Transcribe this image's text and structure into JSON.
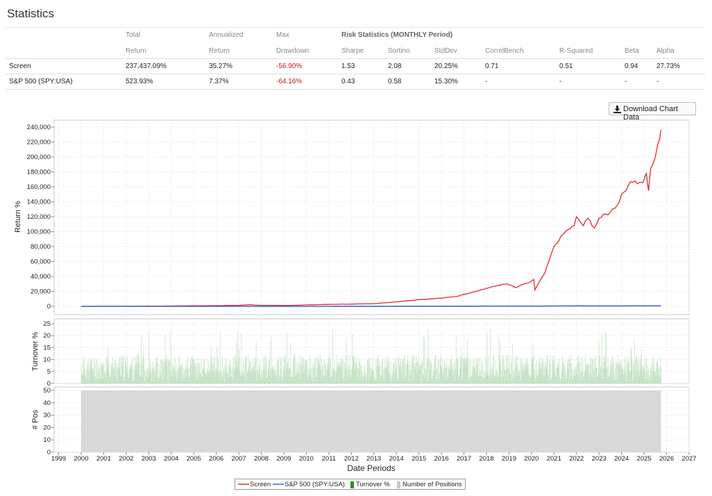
{
  "page": {
    "title": "Statistics"
  },
  "stats": {
    "risk_header": "Risk Statistics (MONTHLY Period)",
    "headers": [
      {
        "key": "total",
        "line1": "Total",
        "line2": "Return"
      },
      {
        "key": "ann",
        "line1": "Annualized",
        "line2": "Return"
      },
      {
        "key": "maxdd",
        "line1": "Max",
        "line2": "Drawdown"
      },
      {
        "key": "sharpe",
        "line1": "",
        "line2": "Sharpe"
      },
      {
        "key": "sortino",
        "line1": "",
        "line2": "Sortino"
      },
      {
        "key": "stddev",
        "line1": "",
        "line2": "StdDev"
      },
      {
        "key": "correl",
        "line1": "",
        "line2": "CorrelBench"
      },
      {
        "key": "rsq",
        "line1": "",
        "line2": "R-Squared"
      },
      {
        "key": "beta",
        "line1": "",
        "line2": "Beta"
      },
      {
        "key": "alpha",
        "line1": "",
        "line2": "Alpha"
      }
    ],
    "rows": [
      {
        "name": "Screen",
        "values": [
          "237,437.09%",
          "35.27%",
          "-56.90%",
          "1.53",
          "2.08",
          "20.25%",
          "0.71",
          "0.51",
          "0.94",
          "27.73%"
        ]
      },
      {
        "name": "S&P 500 (SPY:USA)",
        "values": [
          "523.93%",
          "7.37%",
          "-64.16%",
          "0.43",
          "0.58",
          "15.30%",
          "-",
          "-",
          "-",
          "-"
        ]
      }
    ]
  },
  "download_button": {
    "label": "Download Chart Data",
    "icon": "download-icon"
  },
  "chart_data": {
    "type": "line",
    "xlabel": "Date Periods",
    "x_range": [
      1998.8,
      2027.0
    ],
    "x_ticks": [
      "1999",
      "2000",
      "2001",
      "2002",
      "2003",
      "2004",
      "2005",
      "2006",
      "2007",
      "2008",
      "2009",
      "2010",
      "2011",
      "2012",
      "2013",
      "2014",
      "2015",
      "2016",
      "2017",
      "2018",
      "2019",
      "2020",
      "2021",
      "2022",
      "2023",
      "2024",
      "2025",
      "2026",
      "2027"
    ],
    "panels": [
      {
        "ylabel": "Return %",
        "ylim": [
          0,
          240000
        ],
        "yticks": [
          0,
          20000,
          40000,
          60000,
          80000,
          100000,
          120000,
          140000,
          160000,
          180000,
          200000,
          220000,
          240000
        ],
        "ytick_labels": [
          "0",
          "20,000",
          "40,000",
          "60,000",
          "80,000",
          "100,000",
          "120,000",
          "140,000",
          "160,000",
          "180,000",
          "200,000",
          "220,000",
          "240,000"
        ],
        "series": [
          {
            "name": "Screen",
            "color": "#e8262b",
            "x": [
              2000.0,
              2001.0,
              2002.0,
              2003.0,
              2004.0,
              2005.0,
              2006.0,
              2007.0,
              2007.5,
              2008.0,
              2009.0,
              2009.6,
              2010.0,
              2011.0,
              2012.0,
              2013.0,
              2014.0,
              2015.0,
              2016.0,
              2016.7,
              2017.0,
              2017.5,
              2018.0,
              2018.5,
              2018.9,
              2019.0,
              2019.3,
              2019.6,
              2019.9,
              2020.1,
              2020.15,
              2020.3,
              2020.6,
              2021.0,
              2021.5,
              2021.9,
              2022.0,
              2022.3,
              2022.5,
              2022.8,
              2023.0,
              2023.5,
              2023.9,
              2024.0,
              2024.3,
              2024.6,
              2024.9,
              2025.0,
              2025.1,
              2025.2,
              2025.3,
              2025.5,
              2025.7,
              2025.75
            ],
            "y": [
              0,
              100,
              150,
              250,
              500,
              800,
              1000,
              1300,
              2200,
              1300,
              1100,
              1500,
              2000,
              2600,
              3000,
              3600,
              6000,
              9000,
              11000,
              13500,
              16000,
              20000,
              24000,
              28000,
              30000,
              29000,
              25000,
              29000,
              32000,
              36000,
              22000,
              30000,
              45000,
              80000,
              100000,
              108000,
              120000,
              108000,
              118000,
              105000,
              118000,
              126000,
              140000,
              150000,
              162000,
              168000,
              166000,
              170000,
              178000,
              155000,
              185000,
              200000,
              225000,
              236000
            ]
          },
          {
            "name": "S&P 500 (SPY:USA)",
            "color": "#3d67d6",
            "x": [
              2000.0,
              2003.0,
              2008.0,
              2009.0,
              2013.0,
              2016.0,
              2020.0,
              2020.2,
              2022.0,
              2022.8,
              2025.0,
              2025.75
            ],
            "y": [
              0,
              -40,
              10,
              -40,
              120,
              180,
              300,
              250,
              620,
              520,
              650,
              620
            ]
          }
        ]
      },
      {
        "ylabel": "Turnover %",
        "ylim": [
          0,
          25
        ],
        "yticks": [
          0,
          5,
          10,
          15,
          20,
          25
        ],
        "series": [
          {
            "name": "Turnover %",
            "type": "bar",
            "color": "#a8d5a8",
            "typical_range": [
              1,
              12
            ],
            "max": 23
          }
        ]
      },
      {
        "ylabel": "# Pos",
        "ylim": [
          0,
          50
        ],
        "yticks": [
          0,
          10,
          20,
          30,
          40,
          50
        ],
        "series": [
          {
            "name": "Number of Positions",
            "type": "area",
            "color": "#d9d9d9",
            "x": [
              2000.0,
              2025.75
            ],
            "y": [
              50,
              50
            ]
          }
        ]
      }
    ],
    "legend": {
      "placement": "bottom-center",
      "items": [
        {
          "label": "Screen",
          "color": "#e8262b",
          "kind": "line"
        },
        {
          "label": "S&P 500 (SPY:USA)",
          "color": "#3d67d6",
          "kind": "line"
        },
        {
          "label": "Turnover %",
          "color": "#2e8b2e",
          "kind": "bar"
        },
        {
          "label": "Number of Positions",
          "color": "#c8c8c8",
          "kind": "bar"
        }
      ]
    }
  }
}
